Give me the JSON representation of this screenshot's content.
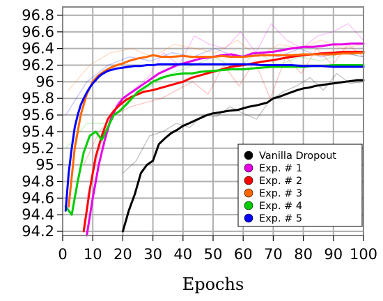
{
  "chart_data": {
    "type": "line",
    "title": "",
    "xlabel": "Epochs",
    "ylabel": "",
    "xlim": [
      0,
      100
    ],
    "ylim": [
      94.15,
      96.9
    ],
    "x_ticks": [
      0,
      10,
      20,
      30,
      40,
      50,
      60,
      70,
      80,
      90,
      100
    ],
    "y_ticks": [
      94.2,
      94.4,
      94.6,
      94.8,
      95,
      95.2,
      95.4,
      95.6,
      95.8,
      96,
      96.2,
      96.4,
      96.6,
      96.8
    ],
    "x_tick_labels": [
      "0",
      "10",
      "20",
      "30",
      "40",
      "50",
      "60",
      "70",
      "80",
      "90",
      "100"
    ],
    "y_tick_labels": [
      "94.2",
      "94.4",
      "94.6",
      "94.8",
      "95",
      "95.2",
      "95.4",
      "95.6",
      "95.8",
      "96",
      "96.2",
      "96.4",
      "96.6",
      "96.8"
    ],
    "grid": true,
    "legend_position": "bottom-right",
    "series": [
      {
        "name": "Vanilla Dropout",
        "color": "#000000",
        "x": [
          20,
          22,
          24,
          26,
          28,
          30,
          32,
          34,
          36,
          38,
          40,
          42,
          45,
          48,
          50,
          52,
          55,
          58,
          60,
          62,
          65,
          68,
          70,
          72,
          75,
          78,
          80,
          82,
          84,
          86,
          88,
          90,
          92,
          94,
          96,
          98,
          100
        ],
        "y": [
          94.2,
          94.45,
          94.65,
          94.9,
          95.0,
          95.05,
          95.25,
          95.32,
          95.38,
          95.42,
          95.47,
          95.5,
          95.55,
          95.6,
          95.62,
          95.63,
          95.65,
          95.66,
          95.68,
          95.7,
          95.72,
          95.75,
          95.8,
          95.82,
          95.86,
          95.9,
          95.92,
          95.93,
          95.95,
          95.96,
          95.97,
          95.98,
          95.99,
          96.0,
          96.01,
          96.02,
          96.02
        ],
        "noisy": [
          94.9,
          95.05,
          95.35,
          95.4,
          95.5,
          95.45,
          95.6,
          95.58,
          95.7,
          95.62,
          95.55,
          95.78,
          95.88,
          95.95,
          96.05,
          95.9,
          96.1,
          95.98,
          96.0
        ]
      },
      {
        "name": "Exp. # 1",
        "color": "#e600e6",
        "x": [
          8,
          10,
          12,
          14,
          16,
          18,
          20,
          22,
          24,
          26,
          28,
          30,
          32,
          35,
          38,
          40,
          43,
          46,
          50,
          53,
          56,
          60,
          63,
          66,
          70,
          73,
          76,
          80,
          83,
          86,
          90,
          93,
          96,
          100
        ],
        "y": [
          94.15,
          94.6,
          95.0,
          95.3,
          95.55,
          95.7,
          95.8,
          95.85,
          95.9,
          95.95,
          96.0,
          96.05,
          96.1,
          96.15,
          96.2,
          96.22,
          96.25,
          96.28,
          96.3,
          96.32,
          96.33,
          96.3,
          96.34,
          96.35,
          96.36,
          96.38,
          96.4,
          96.42,
          96.42,
          96.43,
          96.45,
          96.45,
          96.46,
          96.46
        ],
        "noisy": [
          94.6,
          95.3,
          95.75,
          95.9,
          96.05,
          96.35,
          96.2,
          96.55,
          96.45,
          96.4,
          96.6,
          96.35,
          96.7,
          96.5,
          96.4,
          96.55,
          96.6,
          96.7,
          96.5
        ]
      },
      {
        "name": "Exp. # 2",
        "color": "#ff0000",
        "x": [
          7,
          9,
          11,
          13,
          15,
          17,
          19,
          21,
          23,
          25,
          27,
          30,
          33,
          36,
          40,
          43,
          46,
          50,
          53,
          56,
          60,
          63,
          66,
          70,
          73,
          76,
          80,
          83,
          86,
          90,
          93,
          96,
          100
        ],
        "y": [
          94.2,
          94.7,
          95.1,
          95.35,
          95.55,
          95.65,
          95.72,
          95.78,
          95.82,
          95.85,
          95.88,
          95.9,
          95.93,
          95.96,
          96.0,
          96.05,
          96.08,
          96.12,
          96.15,
          96.18,
          96.2,
          96.22,
          96.24,
          96.26,
          96.28,
          96.3,
          96.32,
          96.33,
          96.34,
          96.35,
          96.36,
          96.36,
          96.36
        ],
        "noisy": [
          95.0,
          95.4,
          95.6,
          95.7,
          95.75,
          95.8,
          95.9,
          96.0,
          95.85,
          96.2,
          95.95,
          96.25,
          95.8,
          96.3,
          96.1,
          96.4,
          96.2,
          96.45,
          96.3
        ]
      },
      {
        "name": "Exp. # 3",
        "color": "#ff6600",
        "x": [
          2,
          4,
          6,
          8,
          10,
          12,
          14,
          16,
          18,
          20,
          22,
          25,
          28,
          30,
          33,
          36,
          40,
          43,
          46,
          50,
          53,
          56,
          60,
          63,
          66,
          70,
          73,
          76,
          80,
          83,
          86,
          90,
          93,
          96,
          100
        ],
        "y": [
          94.5,
          95.2,
          95.6,
          95.85,
          96.0,
          96.08,
          96.13,
          96.17,
          96.2,
          96.22,
          96.25,
          96.28,
          96.3,
          96.32,
          96.3,
          96.3,
          96.31,
          96.3,
          96.3,
          96.3,
          96.31,
          96.3,
          96.3,
          96.31,
          96.32,
          96.32,
          96.32,
          96.32,
          96.33,
          96.33,
          96.33,
          96.33,
          96.34,
          96.34,
          96.35
        ],
        "noisy": [
          95.9,
          96.2,
          96.35,
          96.4,
          96.3,
          96.45,
          96.4,
          96.35,
          96.5,
          96.3,
          96.45,
          96.4,
          96.5,
          96.4,
          96.45
        ]
      },
      {
        "name": "Exp. # 4",
        "color": "#00cc00",
        "x": [
          1,
          3,
          5,
          7,
          9,
          11,
          13,
          15,
          17,
          19,
          21,
          23,
          25,
          28,
          30,
          33,
          36,
          40,
          43,
          46,
          50,
          53,
          56,
          60,
          63,
          66,
          70,
          73,
          76,
          80,
          83,
          86,
          90,
          93,
          96,
          100
        ],
        "y": [
          94.5,
          94.4,
          94.8,
          95.15,
          95.35,
          95.4,
          95.3,
          95.45,
          95.6,
          95.65,
          95.72,
          95.8,
          95.88,
          95.95,
          96.0,
          96.05,
          96.08,
          96.1,
          96.1,
          96.12,
          96.13,
          96.14,
          96.15,
          96.15,
          96.16,
          96.17,
          96.18,
          96.18,
          96.18,
          96.18,
          96.19,
          96.19,
          96.2,
          96.2,
          96.2,
          96.2
        ],
        "noisy": [
          95.2,
          95.5,
          95.5,
          95.8,
          95.95,
          96.1,
          96.2,
          96.3,
          96.15,
          96.35,
          96.2,
          96.3,
          96.25,
          96.35,
          96.3
        ]
      },
      {
        "name": "Exp. # 5",
        "color": "#0000ff",
        "x": [
          1,
          2,
          3,
          4,
          5,
          6,
          7,
          8,
          9,
          10,
          11,
          12,
          13,
          14,
          15,
          16,
          18,
          20,
          22,
          24,
          26,
          28,
          30,
          32,
          35,
          38,
          40,
          43,
          46,
          50,
          53,
          56,
          60,
          63,
          66,
          70,
          73,
          76,
          80,
          83,
          86,
          90,
          93,
          96,
          100
        ],
        "y": [
          94.45,
          94.9,
          95.2,
          95.45,
          95.6,
          95.72,
          95.8,
          95.87,
          95.93,
          95.98,
          96.02,
          96.06,
          96.09,
          96.11,
          96.13,
          96.14,
          96.16,
          96.17,
          96.18,
          96.19,
          96.19,
          96.2,
          96.2,
          96.21,
          96.21,
          96.21,
          96.21,
          96.21,
          96.21,
          96.21,
          96.21,
          96.21,
          96.21,
          96.21,
          96.2,
          96.2,
          96.2,
          96.2,
          96.19,
          96.19,
          96.19,
          96.18,
          96.18,
          96.18,
          96.18
        ],
        "noisy": [
          95.6,
          96.0,
          96.2,
          96.3,
          96.25,
          96.35,
          96.3,
          96.4,
          96.3,
          96.35,
          96.3,
          96.4,
          96.3,
          96.35,
          96.3
        ]
      }
    ]
  }
}
